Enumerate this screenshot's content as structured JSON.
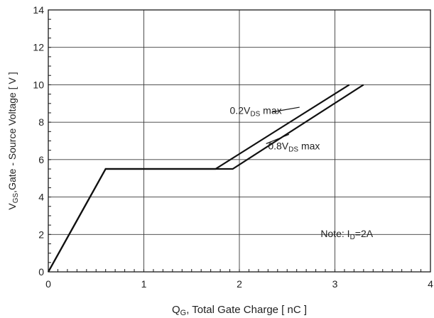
{
  "chart_data": {
    "type": "line",
    "xlabel": {
      "main": "Q",
      "sub": "G",
      "rest": ", Total Gate Charge [ nC ]"
    },
    "ylabel": {
      "main": "V",
      "sub": "GS",
      "rest": ",Gate - Source Voltage [ V ]"
    },
    "xlim": [
      0,
      4
    ],
    "ylim": [
      0,
      14
    ],
    "xticks": [
      0,
      1,
      2,
      3,
      4
    ],
    "yticks": [
      0,
      2,
      4,
      6,
      8,
      10,
      12,
      14
    ],
    "grid": true,
    "series": [
      {
        "points": [
          [
            0,
            0
          ],
          [
            0.6,
            5.5
          ],
          [
            1.75,
            5.5
          ],
          [
            3.15,
            10
          ]
        ]
      },
      {
        "points": [
          [
            0,
            0
          ],
          [
            0.6,
            5.5
          ],
          [
            1.93,
            5.5
          ],
          [
            3.3,
            10
          ]
        ]
      }
    ],
    "annotations": [
      {
        "text_main": "0.2V",
        "text_sub": "DS",
        "text_rest": " max",
        "anchor": [
          1.9,
          8.45
        ]
      },
      {
        "text_main": "0.8V",
        "text_sub": "DS",
        "text_rest": " max",
        "anchor": [
          2.3,
          6.55
        ]
      },
      {
        "text_main": "Note: I",
        "text_sub": "D",
        "text_rest": "=2A",
        "anchor": [
          2.85,
          1.85
        ]
      }
    ]
  }
}
